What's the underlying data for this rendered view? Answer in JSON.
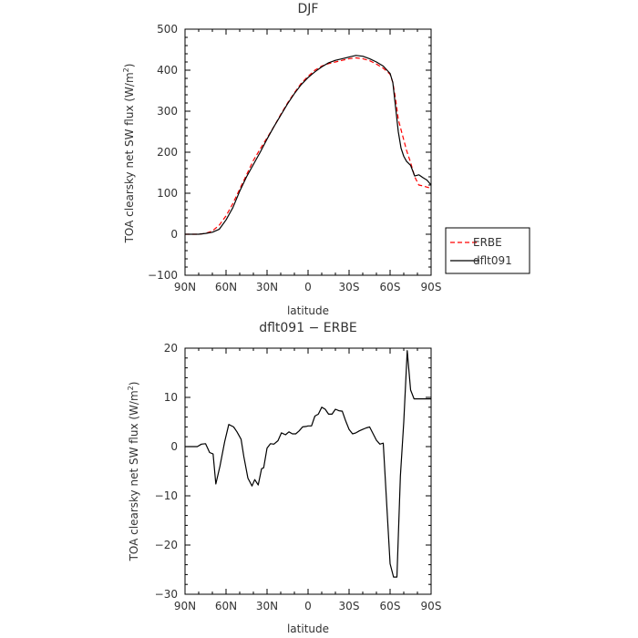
{
  "chart_data": [
    {
      "type": "line",
      "title": "DJF",
      "xlabel": "latitude",
      "ylabel": "TOA clearsky net SW flux (W/m²)",
      "ylabel_main": "TOA clearsky net SW flux (W/m",
      "ylabel_sup": "2",
      "ylabel_end": ")",
      "xlim": [
        90,
        -90
      ],
      "ylim": [
        -100,
        500
      ],
      "x_ticks": [
        90,
        60,
        30,
        0,
        -30,
        -60,
        -90
      ],
      "x_tick_labels": [
        "90N",
        "60N",
        "30N",
        "0",
        "30S",
        "60S",
        "90S"
      ],
      "y_ticks": [
        -100,
        0,
        100,
        200,
        300,
        400,
        500
      ],
      "y_tick_labels": [
        "−100",
        "0",
        "100",
        "200",
        "300",
        "400",
        "500"
      ],
      "grid": false,
      "legend": "right",
      "series": [
        {
          "name": "ERBE",
          "color": "#ff0000",
          "dash": "dashed",
          "x": [
            90,
            85,
            80,
            75,
            70,
            65,
            60,
            55,
            50,
            45,
            40,
            35,
            30,
            25,
            20,
            15,
            10,
            5,
            0,
            -5,
            -10,
            -15,
            -20,
            -25,
            -30,
            -35,
            -40,
            -45,
            -50,
            -55,
            -60,
            -62,
            -64,
            -66,
            -68,
            -70,
            -72,
            -75,
            -78,
            -81,
            -84,
            -87,
            -90
          ],
          "y": [
            0,
            0,
            0,
            2,
            8,
            22,
            45,
            75,
            110,
            145,
            180,
            208,
            235,
            262,
            292,
            320,
            345,
            368,
            385,
            400,
            410,
            416,
            420,
            424,
            428,
            430,
            428,
            423,
            415,
            405,
            390,
            370,
            330,
            280,
            255,
            230,
            205,
            175,
            140,
            120,
            118,
            115,
            112
          ]
        },
        {
          "name": "dflt091",
          "color": "#000000",
          "dash": "solid",
          "x": [
            90,
            85,
            80,
            75,
            70,
            65,
            60,
            55,
            50,
            45,
            40,
            35,
            30,
            25,
            20,
            15,
            10,
            5,
            0,
            -5,
            -10,
            -15,
            -20,
            -25,
            -30,
            -35,
            -40,
            -45,
            -50,
            -55,
            -60,
            -62,
            -64,
            -66,
            -68,
            -70,
            -72,
            -75,
            -78,
            -81,
            -84,
            -87,
            -90
          ],
          "y": [
            0,
            0,
            0,
            2,
            5,
            12,
            35,
            65,
            105,
            140,
            170,
            200,
            232,
            262,
            290,
            318,
            343,
            365,
            382,
            396,
            408,
            418,
            424,
            428,
            432,
            436,
            434,
            428,
            420,
            410,
            392,
            370,
            310,
            250,
            210,
            190,
            178,
            168,
            142,
            145,
            138,
            132,
            120
          ]
        }
      ]
    },
    {
      "type": "line",
      "title": "dflt091 − ERBE",
      "xlabel": "latitude",
      "ylabel": "TOA clearsky net SW flux (W/m²)",
      "ylabel_main": "TOA clearsky net SW flux (W/m",
      "ylabel_sup": "2",
      "ylabel_end": ")",
      "xlim": [
        90,
        -90
      ],
      "ylim": [
        -30,
        20
      ],
      "x_ticks": [
        90,
        60,
        30,
        0,
        -30,
        -60,
        -90
      ],
      "x_tick_labels": [
        "90N",
        "60N",
        "30N",
        "0",
        "30S",
        "60S",
        "90S"
      ],
      "y_ticks": [
        -30,
        -20,
        -10,
        0,
        10,
        20
      ],
      "y_tick_labels": [
        "−30",
        "−20",
        "−10",
        "0",
        "10",
        "20"
      ],
      "grid": false,
      "series": [
        {
          "name": "dflt091 − ERBE",
          "color": "#000000",
          "dash": "solid",
          "x": [
            90,
            87,
            84,
            81,
            78,
            75,
            72,
            69.5,
            67.5,
            64.5,
            61,
            58,
            54.5,
            52,
            49,
            47,
            44,
            41,
            39,
            36.5,
            34,
            32.5,
            30,
            27.5,
            25,
            22,
            19.5,
            16.5,
            14,
            11.5,
            9,
            6.5,
            4,
            1.5,
            0,
            -2.5,
            -5,
            -7.5,
            -10,
            -12.5,
            -15,
            -17.5,
            -20,
            -22.5,
            -25,
            -27.5,
            -30,
            -32.5,
            -35,
            -37.5,
            -40,
            -42.5,
            -45,
            -50,
            -52.5,
            -55,
            -58,
            -60,
            -62.5,
            -65,
            -67.5,
            -70,
            -72.5,
            -75,
            -77.5,
            -80,
            -82.5,
            -84,
            -87,
            -90
          ],
          "y": [
            0,
            0,
            0,
            0,
            0.5,
            0.6,
            -1.2,
            -1.5,
            -7.6,
            -4,
            1,
            4.5,
            4,
            3,
            1.5,
            -2,
            -6.4,
            -8,
            -6.7,
            -7.8,
            -4.5,
            -4.3,
            -0.3,
            0.6,
            0.5,
            1.2,
            2.8,
            2.4,
            3,
            2.6,
            2.6,
            3.2,
            4,
            4.1,
            4.2,
            4.2,
            6.2,
            6.6,
            8,
            7.6,
            6.6,
            6.6,
            7.6,
            7.3,
            7.2,
            5.2,
            3.5,
            2.6,
            2.8,
            3.2,
            3.5,
            3.8,
            4,
            1.3,
            0.5,
            0.7,
            -14,
            -23.8,
            -26.5,
            -26.5,
            -6,
            5,
            19.5,
            11.5,
            9.7,
            9.7,
            9.7,
            9.7,
            9.7,
            9.7
          ]
        }
      ]
    }
  ]
}
